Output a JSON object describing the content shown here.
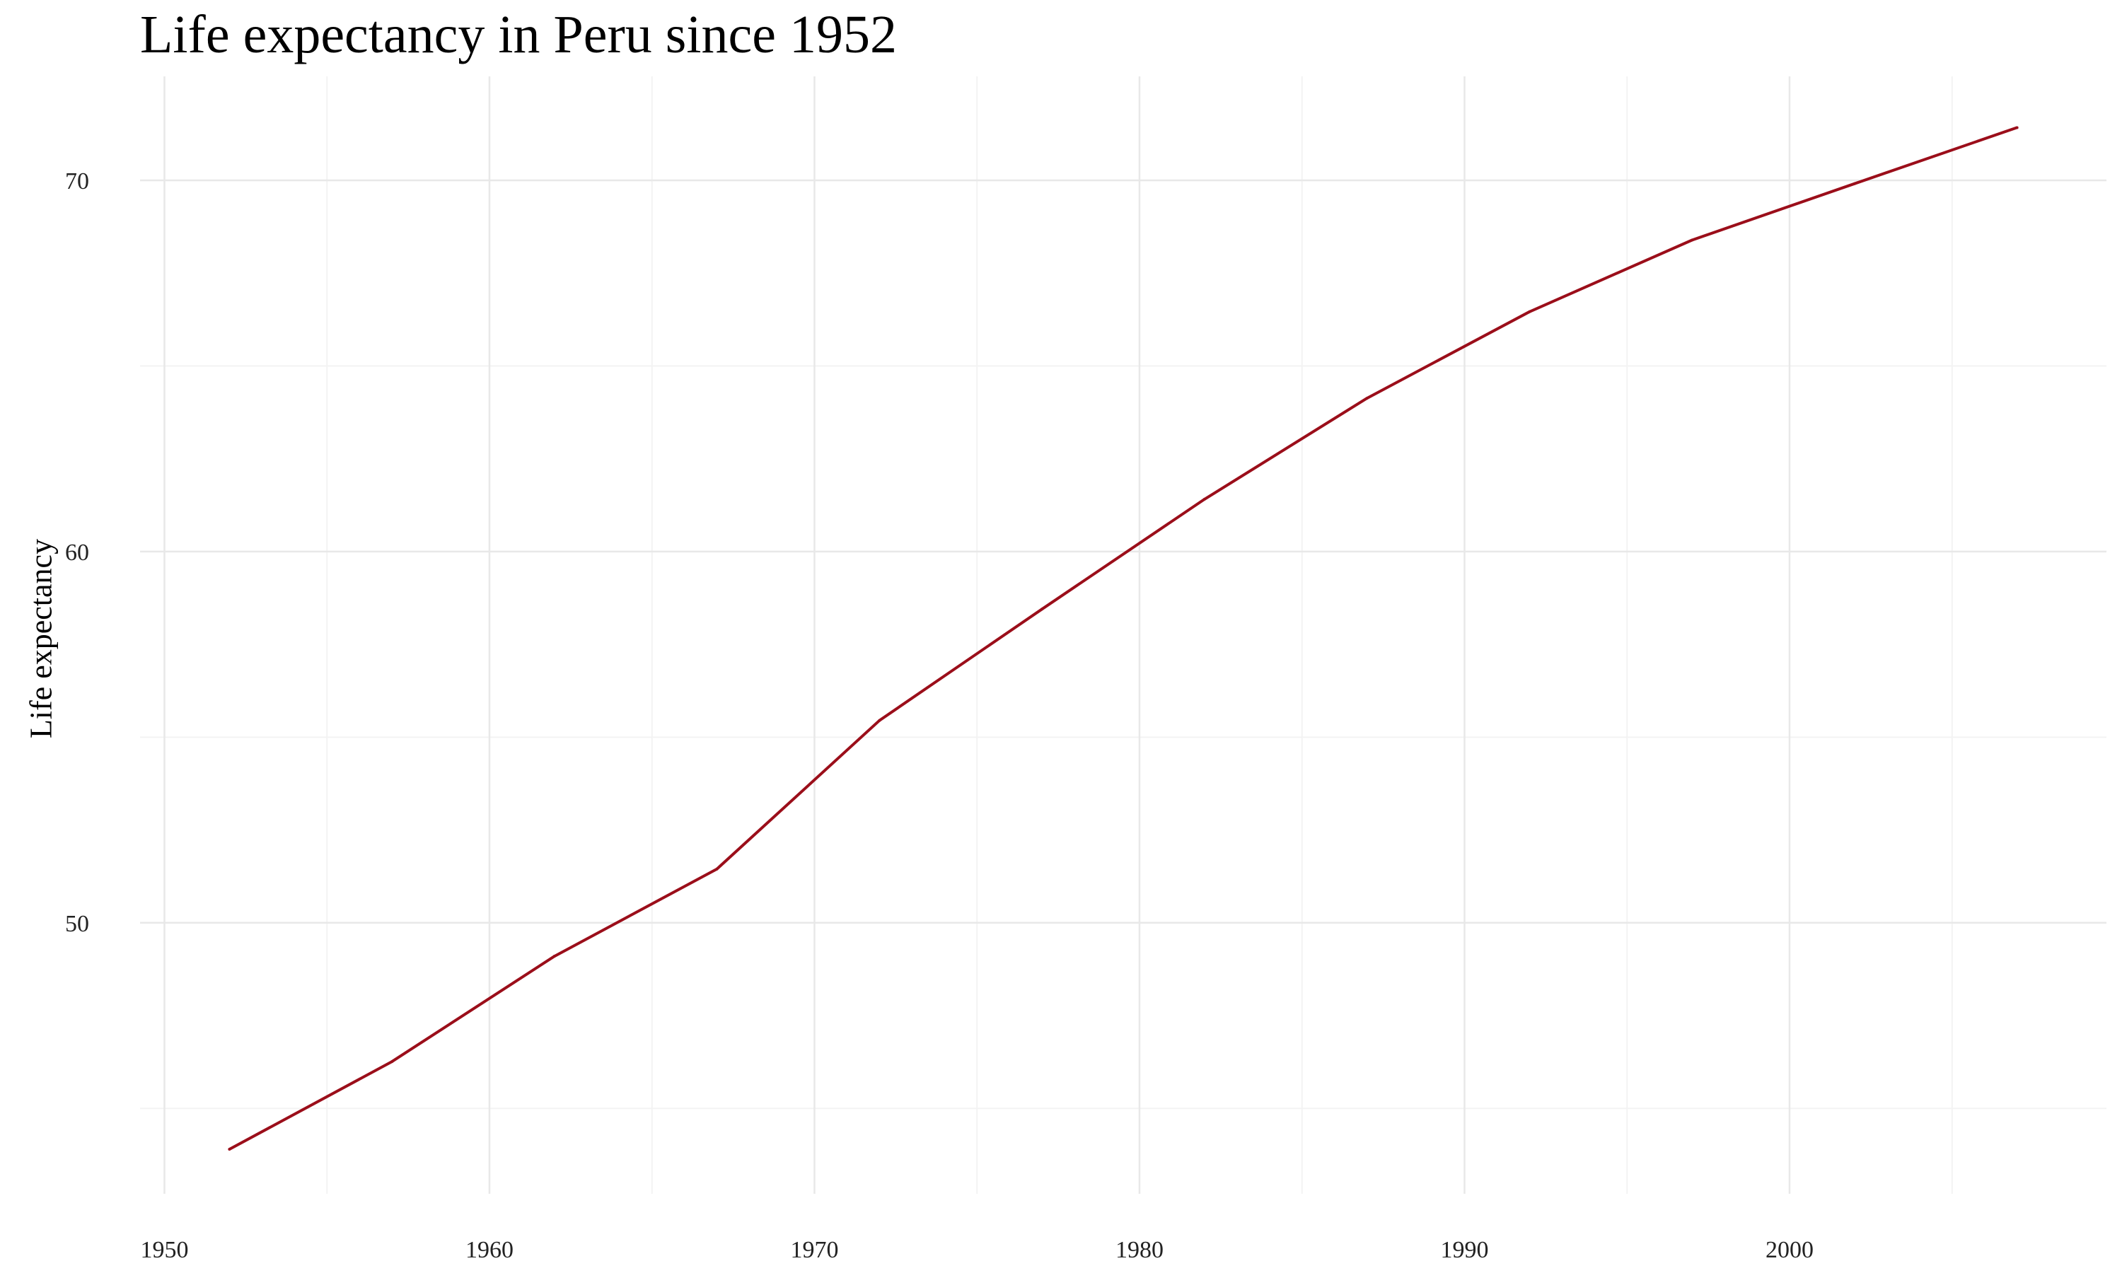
{
  "chart_data": {
    "type": "line",
    "title": "Life expectancy in Peru since 1952",
    "xlabel": "",
    "ylabel": "Life expectancy",
    "xlim": [
      1949.25,
      2009.75
    ],
    "ylim": [
      42.7,
      72.8
    ],
    "x_ticks": [
      1950,
      1960,
      1970,
      1980,
      1990,
      2000
    ],
    "x_ticks_minor": [
      1955,
      1965,
      1975,
      1985,
      1995,
      2005
    ],
    "y_ticks": [
      50,
      60,
      70
    ],
    "y_ticks_minor": [
      45,
      55,
      65
    ],
    "grid": true,
    "legend": "none",
    "series": [
      {
        "color": "#9b0e1a",
        "x": [
          1952,
          1957,
          1962,
          1967,
          1972,
          1977,
          1982,
          1987,
          1992,
          1997,
          2002,
          2007
        ],
        "values": [
          43.9,
          46.26,
          49.1,
          51.45,
          55.45,
          58.45,
          61.41,
          64.13,
          66.46,
          68.39,
          69.91,
          71.42
        ]
      }
    ]
  }
}
